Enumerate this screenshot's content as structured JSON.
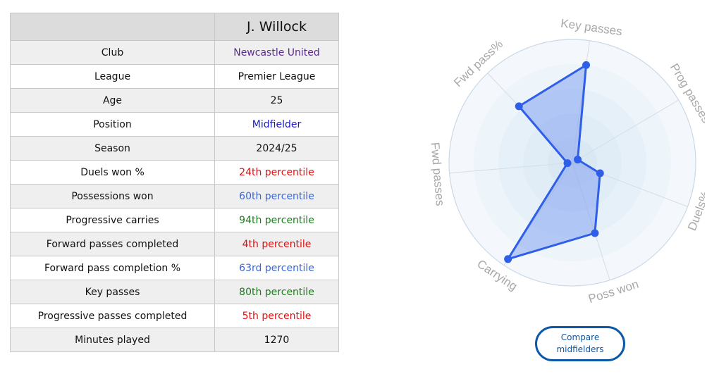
{
  "player": {
    "name": "J. Willock",
    "header_blank": ""
  },
  "rows": [
    {
      "label": "Club",
      "value": "Newcastle United",
      "color": "#5b2d8e"
    },
    {
      "label": "League",
      "value": "Premier League",
      "color": "#111111"
    },
    {
      "label": "Age",
      "value": "25",
      "color": "#111111"
    },
    {
      "label": "Position",
      "value": "Midfielder",
      "color": "#1a1acc"
    },
    {
      "label": "Season",
      "value": "2024/25",
      "color": "#111111"
    },
    {
      "label": "Duels won %",
      "value": "24th percentile",
      "color": "#dd1111"
    },
    {
      "label": "Possessions won",
      "value": "60th percentile",
      "color": "#3a66d8"
    },
    {
      "label": "Progressive carries",
      "value": "94th percentile",
      "color": "#1e7a1e"
    },
    {
      "label": "Forward passes completed",
      "value": "4th percentile",
      "color": "#dd1111"
    },
    {
      "label": "Forward pass completion %",
      "value": "63rd percentile",
      "color": "#3a66d8"
    },
    {
      "label": "Key passes",
      "value": "80th percentile",
      "color": "#1e7a1e"
    },
    {
      "label": "Progressive passes completed",
      "value": "5th percentile",
      "color": "#dd1111"
    },
    {
      "label": "Minutes played",
      "value": "1270",
      "color": "#111111"
    }
  ],
  "chart_data": {
    "type": "radar",
    "axes": [
      "Key passes",
      "Prog passes",
      "Duels%",
      "Poss won",
      "Carrying",
      "Fwd passes",
      "Fwd pass%"
    ],
    "values": [
      80,
      5,
      24,
      60,
      94,
      4,
      63
    ],
    "range": [
      0,
      100
    ],
    "rings": 5,
    "series_color": "#2f5fe8",
    "fill_color": "#6f93f0"
  },
  "compare_button": {
    "label": "Compare midfielders"
  }
}
